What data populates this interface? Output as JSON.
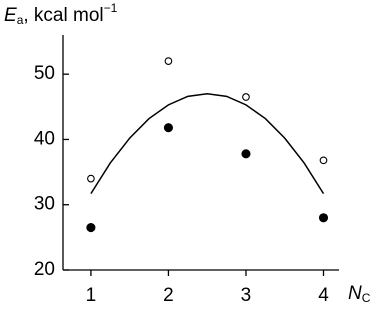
{
  "chart_data": {
    "type": "scatter",
    "ylabel": {
      "main": "E",
      "sub": "a",
      "rest": ", kcal mol",
      "sup": "−1"
    },
    "xlabel": {
      "main": "N",
      "sub": "C"
    },
    "xlim": [
      0.64,
      4.2
    ],
    "ylim": [
      20,
      56
    ],
    "xticks": [
      1,
      2,
      3,
      4
    ],
    "yticks": [
      20,
      30,
      40,
      50
    ],
    "series": [
      {
        "marker": "open",
        "color": "#000000",
        "x": [
          1,
          2,
          3,
          4
        ],
        "values": [
          34.0,
          52.0,
          46.5,
          36.8
        ]
      },
      {
        "marker": "filled",
        "color": "#000000",
        "x": [
          1,
          2,
          3,
          4
        ],
        "values": [
          26.5,
          41.8,
          37.8,
          28.0
        ]
      },
      {
        "marker": "line",
        "color": "#000000",
        "x": [
          1,
          1.25,
          1.5,
          1.75,
          2,
          2.25,
          2.5,
          2.75,
          3,
          3.25,
          3.5,
          3.75,
          4
        ],
        "values": [
          31.7,
          36.4,
          40.2,
          43.2,
          45.3,
          46.6,
          47.0,
          46.6,
          45.3,
          43.2,
          40.2,
          36.4,
          31.7
        ]
      }
    ]
  }
}
